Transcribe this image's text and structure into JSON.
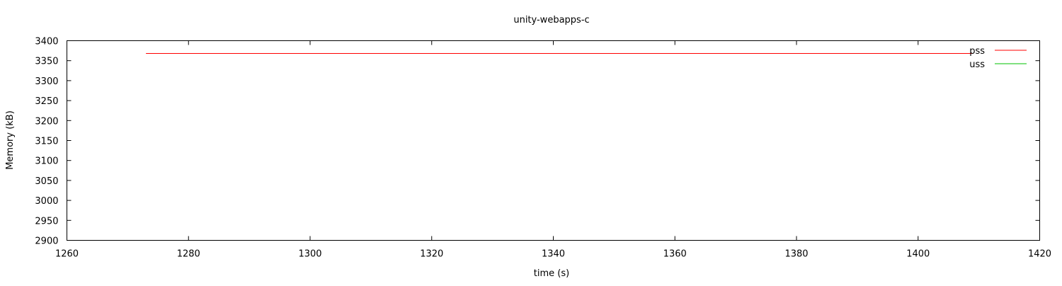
{
  "chart_data": {
    "type": "line",
    "title": "unity-webapps-c",
    "xlabel": "time (s)",
    "ylabel": "Memory (kB)",
    "xlim": [
      1260,
      1420
    ],
    "ylim": [
      2900,
      3400
    ],
    "xticks": [
      1260,
      1280,
      1300,
      1320,
      1340,
      1360,
      1380,
      1400,
      1420
    ],
    "yticks": [
      2900,
      2950,
      3000,
      3050,
      3100,
      3150,
      3200,
      3250,
      3300,
      3350,
      3400
    ],
    "grid": false,
    "legend": "top-right",
    "series": [
      {
        "name": "pss",
        "color": "#ff0000",
        "x": [
          1273,
          1409
        ],
        "y": [
          3368,
          3368
        ]
      },
      {
        "name": "uss",
        "color": "#00c000",
        "x": [],
        "y": []
      }
    ]
  }
}
